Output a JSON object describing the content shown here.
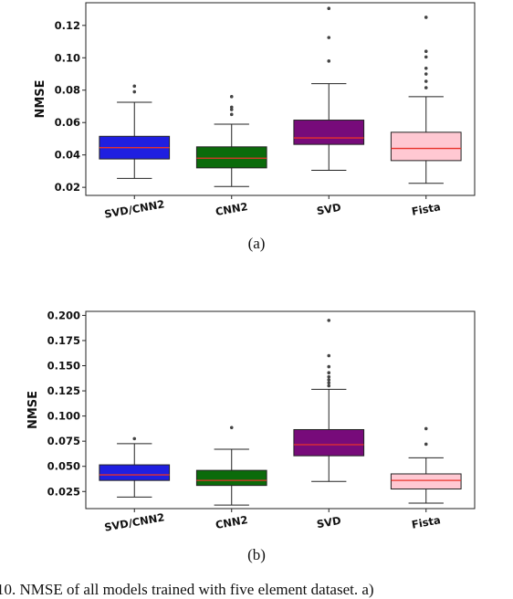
{
  "figure_caption": "10.  NMSE of all models trained with five element dataset. a)",
  "chart_data": [
    {
      "type": "box",
      "subcaption": "(a)",
      "ylabel": "NMSE",
      "ylim": [
        0.015,
        0.134
      ],
      "yticks": [
        0.02,
        0.04,
        0.06,
        0.08,
        0.1,
        0.12
      ],
      "ytick_labels": [
        "0.02",
        "0.04",
        "0.06",
        "0.08",
        "0.10",
        "0.12"
      ],
      "categories": [
        "SVD/CNN2",
        "CNN2",
        "SVD",
        "Fista"
      ],
      "boxes": [
        {
          "whisker_low": 0.0255,
          "q1": 0.0375,
          "median": 0.0445,
          "q3": 0.0515,
          "whisker_high": 0.0725,
          "outliers": [
            0.079,
            0.0825
          ],
          "color": "#1f1fe0"
        },
        {
          "whisker_low": 0.0205,
          "q1": 0.032,
          "median": 0.038,
          "q3": 0.045,
          "whisker_high": 0.059,
          "outliers": [
            0.065,
            0.068,
            0.0695,
            0.076
          ],
          "color": "#0b6b0b"
        },
        {
          "whisker_low": 0.0305,
          "q1": 0.0465,
          "median": 0.0505,
          "q3": 0.0615,
          "whisker_high": 0.084,
          "outliers": [
            0.098,
            0.1125,
            0.1305
          ],
          "color": "#770b7a"
        },
        {
          "whisker_low": 0.0225,
          "q1": 0.0365,
          "median": 0.044,
          "q3": 0.054,
          "whisker_high": 0.076,
          "outliers": [
            0.0815,
            0.0855,
            0.09,
            0.0935,
            0.1005,
            0.104,
            0.125
          ],
          "color": "#ffc8d2"
        }
      ]
    },
    {
      "type": "box",
      "subcaption": "(b)",
      "ylabel": "NMSE",
      "ylim": [
        0.008,
        0.204
      ],
      "yticks": [
        0.025,
        0.05,
        0.075,
        0.1,
        0.125,
        0.15,
        0.175,
        0.2
      ],
      "ytick_labels": [
        "0.025",
        "0.050",
        "0.075",
        "0.100",
        "0.125",
        "0.150",
        "0.175",
        "0.200"
      ],
      "categories": [
        "SVD/CNN2",
        "CNN2",
        "SVD",
        "Fista"
      ],
      "boxes": [
        {
          "whisker_low": 0.0195,
          "q1": 0.036,
          "median": 0.0415,
          "q3": 0.0515,
          "whisker_high": 0.0725,
          "outliers": [
            0.0775
          ],
          "color": "#1f1fe0"
        },
        {
          "whisker_low": 0.0115,
          "q1": 0.031,
          "median": 0.036,
          "q3": 0.046,
          "whisker_high": 0.067,
          "outliers": [
            0.0885
          ],
          "color": "#0b6b0b"
        },
        {
          "whisker_low": 0.035,
          "q1": 0.0605,
          "median": 0.0715,
          "q3": 0.0865,
          "whisker_high": 0.1265,
          "outliers": [
            0.13,
            0.133,
            0.136,
            0.139,
            0.143,
            0.149,
            0.16,
            0.195
          ],
          "color": "#770b7a"
        },
        {
          "whisker_low": 0.0135,
          "q1": 0.0275,
          "median": 0.036,
          "q3": 0.0425,
          "whisker_high": 0.0585,
          "outliers": [
            0.072,
            0.0875
          ],
          "color": "#ffc8d2"
        }
      ]
    }
  ]
}
